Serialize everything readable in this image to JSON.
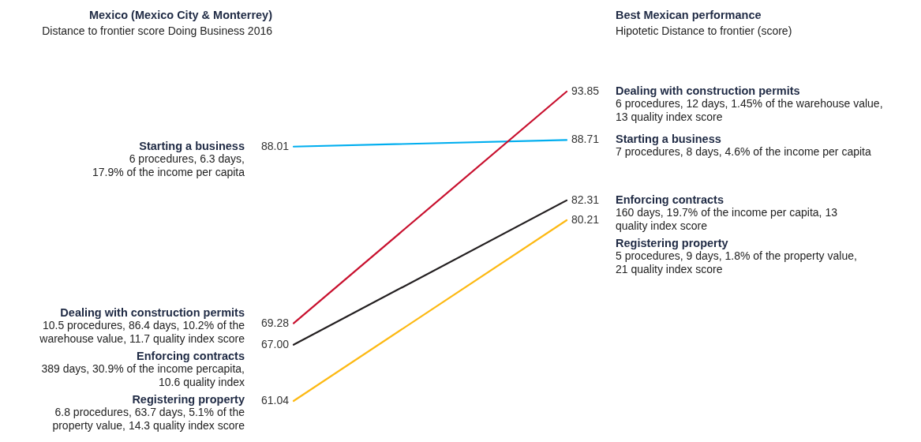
{
  "chart_data": {
    "type": "line",
    "categories": [
      null,
      null
    ],
    "series": [
      {
        "name": "Starting a business",
        "color": "#00aeef",
        "values": [
          88.01,
          88.71
        ],
        "value_labels": [
          "88.01",
          "88.71"
        ]
      },
      {
        "name": "Dealing with construction permits",
        "color": "#c8102e",
        "values": [
          69.28,
          93.85
        ],
        "value_labels": [
          "69.28",
          "93.85"
        ]
      },
      {
        "name": "Enforcing contracts",
        "color": "#231f20",
        "values": [
          67.0,
          82.31
        ],
        "value_labels": [
          "67.00",
          "82.31"
        ]
      },
      {
        "name": "Registering property",
        "color": "#fdb913",
        "values": [
          61.04,
          80.21
        ],
        "value_labels": [
          "61.04",
          "80.21"
        ]
      }
    ],
    "annotations": [
      "Mexico (Mexico City & Monterrey)",
      "Distance to frontier score Doing Business 2016",
      "Best Mexican performance",
      "Hipotetic Distance to frontier (score)",
      "6 procedures, 6.3 days,\n17.9% of the income per capita",
      "10.5 procedures, 86.4 days, 10.2% of the\nwarehouse value, 11.7 quality index score",
      "389 days, 30.9% of the income percapita,\n10.6 quality index",
      "6.8 procedures, 63.7 days, 5.1% of the\nproperty value, 14.3 quality index score",
      "7 procedures, 8 days, 4.6% of the income per capita",
      "6 procedures, 12 days, 1.45% of the warehouse value,\n13 quality index score",
      "160 days, 19.7% of the income per capita, 13\nquality index score",
      "5 procedures, 9 days, 1.8% of the property value,\n21 quality index score"
    ]
  }
}
